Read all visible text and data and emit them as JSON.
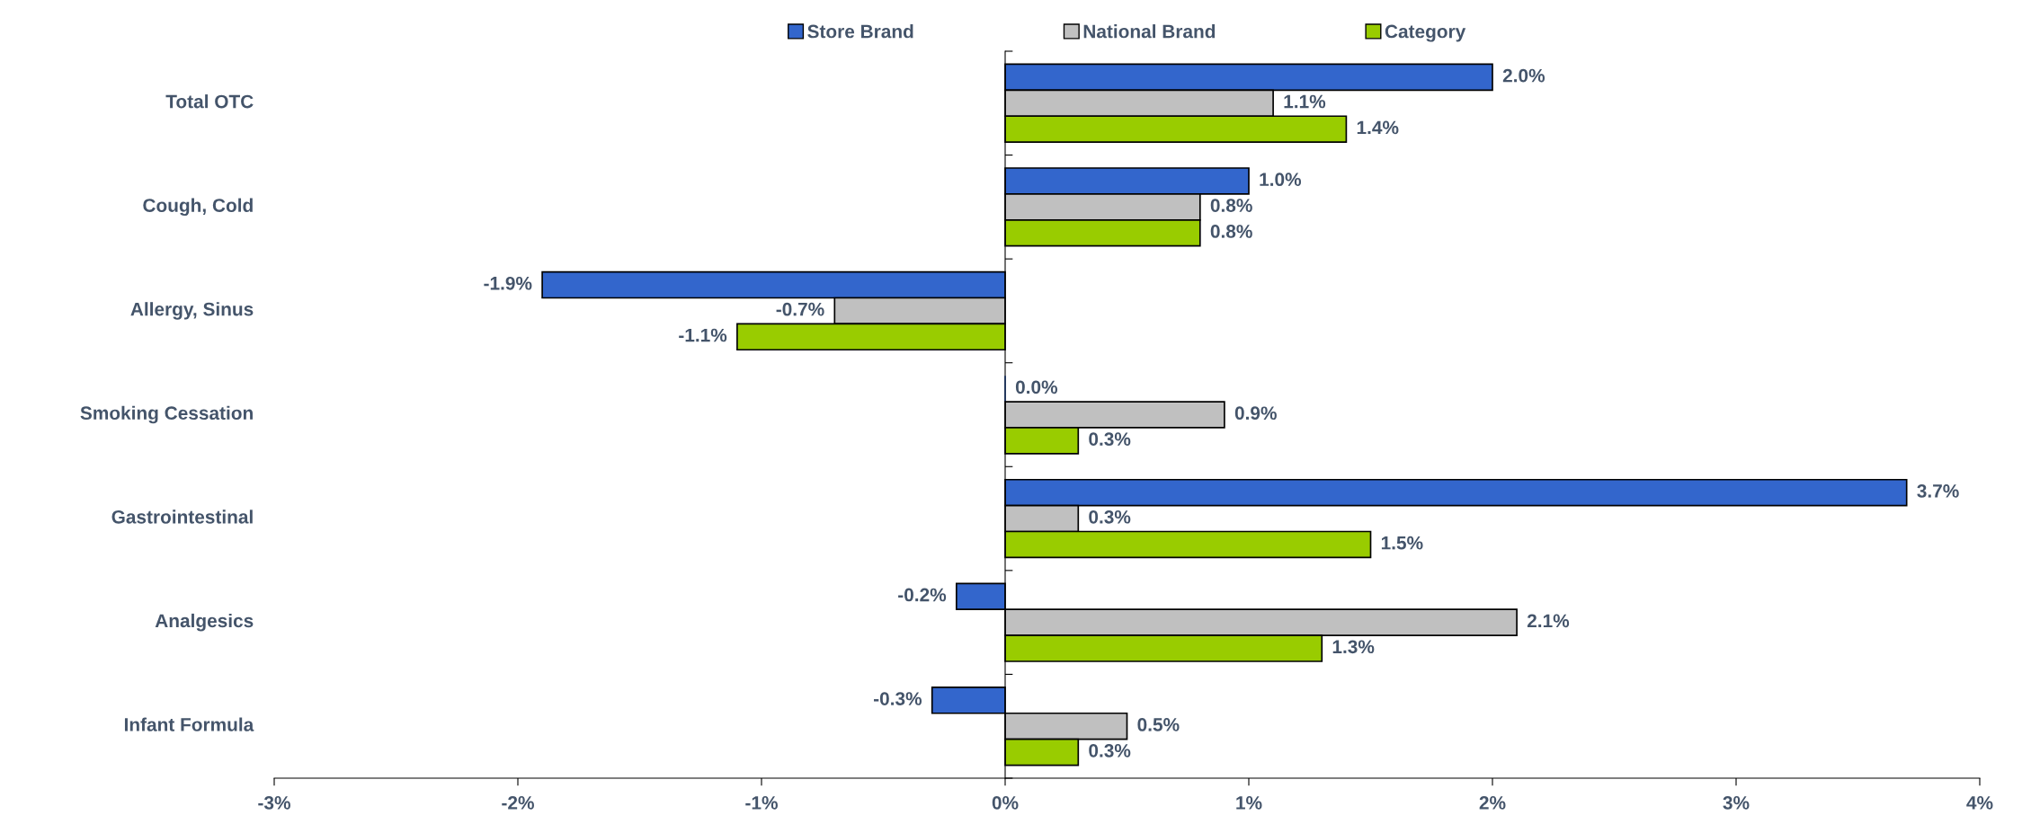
{
  "chart_data": {
    "type": "bar",
    "orientation": "horizontal",
    "categories": [
      "Total OTC",
      "Cough, Cold",
      "Allergy, Sinus",
      "Smoking Cessation",
      "Gastrointestinal",
      "Analgesics",
      "Infant Formula"
    ],
    "series": [
      {
        "name": "Store Brand",
        "color": "#3366cc",
        "values": [
          2.0,
          1.0,
          -1.9,
          0.0,
          3.7,
          -0.2,
          -0.3
        ],
        "value_labels": [
          "2.0%",
          "1.0%",
          "-1.9%",
          "0.0%",
          "3.7%",
          "-0.2%",
          "-0.3%"
        ]
      },
      {
        "name": "National Brand",
        "color": "#c0c0c0",
        "values": [
          1.1,
          0.8,
          -0.7,
          0.9,
          0.3,
          2.1,
          0.5
        ],
        "value_labels": [
          "1.1%",
          "0.8%",
          "-0.7%",
          "0.9%",
          "0.3%",
          "2.1%",
          "0.5%"
        ]
      },
      {
        "name": "Category",
        "color": "#99cc00",
        "values": [
          1.4,
          0.8,
          -1.1,
          0.3,
          1.5,
          1.3,
          0.3
        ],
        "value_labels": [
          "1.4%",
          "0.8%",
          "-1.1%",
          "0.3%",
          "1.5%",
          "1.3%",
          "0.3%"
        ]
      }
    ],
    "xlim": [
      -3,
      4
    ],
    "xticks": [
      {
        "value": -3,
        "label": "-3%"
      },
      {
        "value": -2,
        "label": "-2%"
      },
      {
        "value": -1,
        "label": "-1%"
      },
      {
        "value": 0,
        "label": "0%"
      },
      {
        "value": 1,
        "label": "1%"
      },
      {
        "value": 2,
        "label": "2%"
      },
      {
        "value": 3,
        "label": "3%"
      },
      {
        "value": 4,
        "label": "4%"
      }
    ],
    "legend": "top"
  }
}
